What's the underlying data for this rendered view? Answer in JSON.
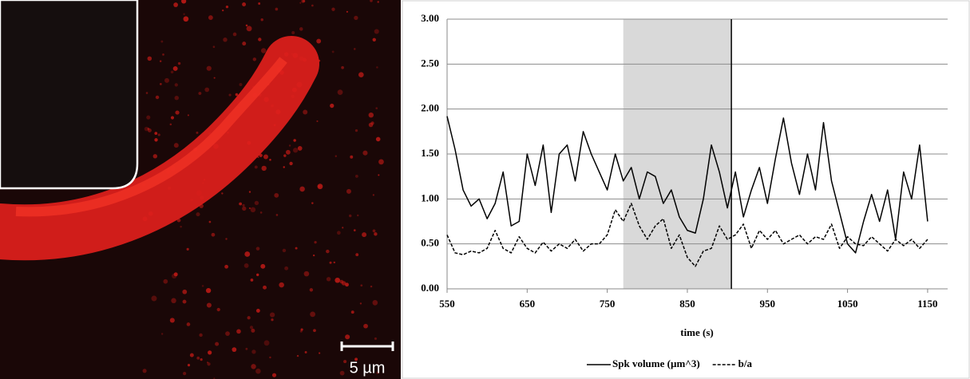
{
  "image": {
    "scale_label": "5 µm"
  },
  "chart_data": {
    "type": "line",
    "x_label": "time (s)",
    "x": [
      550,
      560,
      570,
      580,
      590,
      600,
      610,
      620,
      630,
      640,
      650,
      660,
      670,
      680,
      690,
      700,
      710,
      720,
      730,
      740,
      750,
      760,
      770,
      780,
      790,
      800,
      810,
      820,
      830,
      840,
      850,
      860,
      870,
      880,
      890,
      900,
      910,
      920,
      930,
      940,
      950,
      960,
      970,
      980,
      990,
      1000,
      1010,
      1020,
      1030,
      1040,
      1050,
      1060,
      1070,
      1080,
      1090,
      1100,
      1110,
      1120,
      1130,
      1140,
      1150
    ],
    "series": [
      {
        "name": "Spk volume (µm^3)",
        "color": "#000000",
        "dash": false,
        "values": [
          1.92,
          1.55,
          1.1,
          0.92,
          1.0,
          0.78,
          0.95,
          1.3,
          0.7,
          0.75,
          1.5,
          1.15,
          1.6,
          0.85,
          1.5,
          1.6,
          1.2,
          1.75,
          1.5,
          1.3,
          1.1,
          1.5,
          1.2,
          1.35,
          1.0,
          1.3,
          1.25,
          0.95,
          1.1,
          0.8,
          0.65,
          0.62,
          1.0,
          1.6,
          1.3,
          0.9,
          1.3,
          0.8,
          1.1,
          1.35,
          0.95,
          1.45,
          1.9,
          1.4,
          1.05,
          1.5,
          1.1,
          1.85,
          1.2,
          0.85,
          0.5,
          0.4,
          0.75,
          1.05,
          0.75,
          1.1,
          0.55,
          1.3,
          1.0,
          1.6,
          0.75
        ]
      },
      {
        "name": "b/a",
        "color": "#000000",
        "dash": true,
        "values": [
          0.6,
          0.4,
          0.38,
          0.42,
          0.4,
          0.45,
          0.65,
          0.45,
          0.4,
          0.58,
          0.45,
          0.4,
          0.52,
          0.42,
          0.5,
          0.45,
          0.55,
          0.42,
          0.5,
          0.5,
          0.6,
          0.88,
          0.75,
          0.95,
          0.7,
          0.55,
          0.7,
          0.78,
          0.45,
          0.6,
          0.35,
          0.25,
          0.42,
          0.45,
          0.7,
          0.55,
          0.6,
          0.72,
          0.45,
          0.65,
          0.55,
          0.65,
          0.5,
          0.55,
          0.6,
          0.5,
          0.58,
          0.55,
          0.72,
          0.45,
          0.58,
          0.5,
          0.48,
          0.58,
          0.5,
          0.42,
          0.55,
          0.48,
          0.55,
          0.45,
          0.55
        ]
      }
    ],
    "xlim": [
      550,
      1175
    ],
    "xticks": [
      550,
      650,
      750,
      850,
      950,
      1050,
      1150
    ],
    "ylim": [
      0,
      3
    ],
    "yticks": [
      {
        "value": 0,
        "label": "0.00"
      },
      {
        "value": 0.5,
        "label": "0.50"
      },
      {
        "value": 1,
        "label": "1.00"
      },
      {
        "value": 1.5,
        "label": "1.50"
      },
      {
        "value": 2,
        "label": "2.00"
      },
      {
        "value": 2.5,
        "label": "2.50"
      },
      {
        "value": 3,
        "label": "3.00"
      }
    ],
    "grid": true,
    "shaded_region": [
      770,
      905
    ],
    "shade_color": "#d9d9d9",
    "marker_x": 905,
    "legend": "bottom"
  }
}
